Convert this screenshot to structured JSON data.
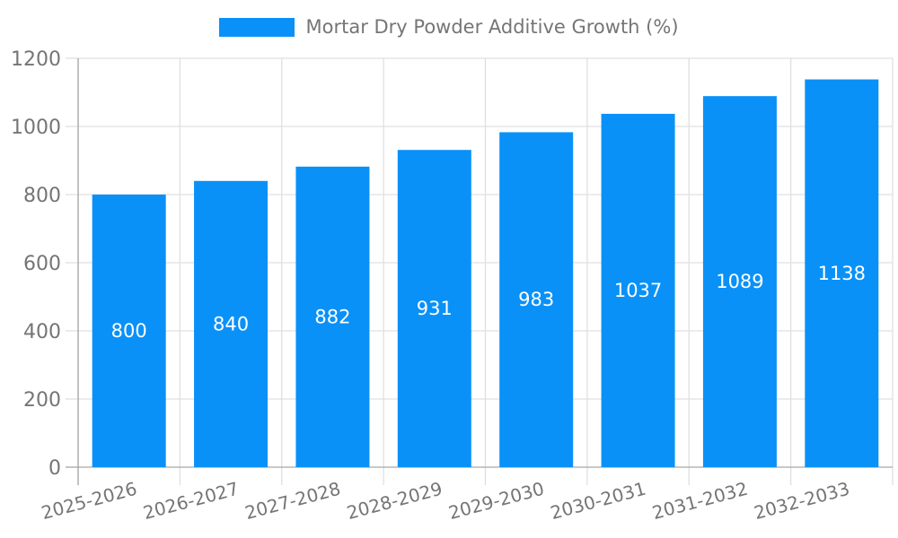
{
  "chart_data": {
    "type": "bar",
    "title": "Mortar Dry Powder Additive Growth (%)",
    "categories": [
      "2025-2026",
      "2026-2027",
      "2027-2028",
      "2028-2029",
      "2029-2030",
      "2030-2031",
      "2031-2032",
      "2032-2033"
    ],
    "series": [
      {
        "name": "Mortar Dry Powder Additive Growth (%)",
        "values": [
          800,
          840,
          882,
          931,
          983,
          1037,
          1089,
          1138
        ]
      }
    ],
    "xlabel": "",
    "ylabel": "",
    "ylim": [
      0,
      1200
    ],
    "yticks": [
      0,
      200,
      400,
      600,
      800,
      1000,
      1200
    ],
    "grid": true,
    "legend_position": "top-center",
    "xtick_rotation_deg": -15,
    "colors": {
      "bar": "#0a91f8",
      "value_label": "#ffffff",
      "tick_label": "#757575",
      "gridline": "#e0e0e0",
      "axis_line": "#a6a6a6",
      "background": "#ffffff"
    }
  }
}
